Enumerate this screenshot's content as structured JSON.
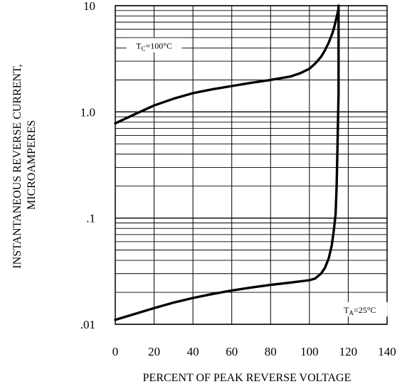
{
  "chart_data": {
    "type": "line",
    "title": "",
    "xlabel": "PERCENT OF PEAK REVERSE VOLTAGE",
    "ylabel": [
      "INSTANTANEOUS REVERSE CURRENT,",
      "MICROAMPERES"
    ],
    "xlim": [
      0,
      140
    ],
    "ylim": [
      0.01,
      10
    ],
    "yscale": "log",
    "grid": true,
    "x_ticks": [
      0,
      20,
      40,
      60,
      80,
      100,
      120,
      140
    ],
    "x_tick_labels": [
      "0",
      "20",
      "40",
      "60",
      "80",
      "100",
      "120",
      "140"
    ],
    "y_ticks": [
      0.01,
      0.1,
      1,
      10
    ],
    "y_tick_labels": [
      ".01",
      ".1",
      "1.0",
      "10"
    ],
    "series": [
      {
        "name": "TC=100°C",
        "x": [
          0,
          10,
          20,
          30,
          40,
          50,
          60,
          70,
          80,
          90,
          95,
          100,
          103,
          106,
          108,
          110,
          112,
          113,
          114,
          114.5,
          115,
          115,
          115
        ],
        "y": [
          0.78,
          0.95,
          1.15,
          1.33,
          1.5,
          1.63,
          1.75,
          1.88,
          2.0,
          2.15,
          2.3,
          2.55,
          2.85,
          3.3,
          3.8,
          4.5,
          5.6,
          6.5,
          7.8,
          8.5,
          9.3,
          10,
          9.8
        ]
      },
      {
        "name": "TA=25°C",
        "x": [
          0,
          10,
          20,
          30,
          40,
          50,
          60,
          70,
          80,
          90,
          100,
          103,
          106,
          108,
          110,
          111.5,
          112.5,
          113.5,
          114,
          114.5,
          115,
          115,
          115
        ],
        "y": [
          0.011,
          0.0125,
          0.0142,
          0.016,
          0.0177,
          0.0193,
          0.0208,
          0.0222,
          0.0235,
          0.0247,
          0.026,
          0.027,
          0.03,
          0.034,
          0.042,
          0.055,
          0.075,
          0.11,
          0.2,
          0.5,
          1.5,
          5,
          10
        ]
      }
    ],
    "annotations": [
      {
        "main": "T",
        "sub": "C",
        "rest": "=100°C",
        "x": 20,
        "y": 4.0
      },
      {
        "main": "T",
        "sub": "A",
        "rest": "=25°C",
        "x": 126,
        "y": 0.013
      }
    ]
  }
}
